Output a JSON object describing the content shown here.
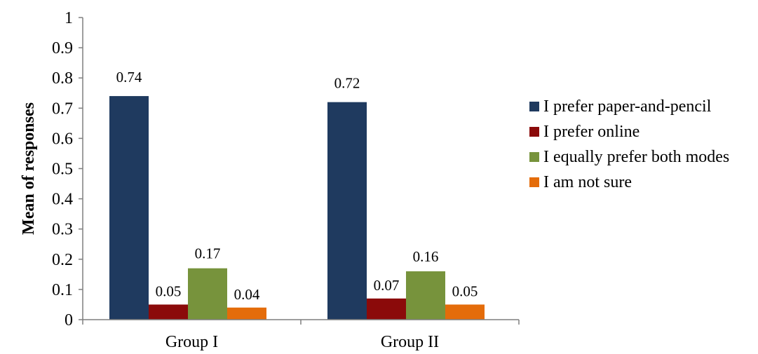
{
  "chart_data": {
    "type": "bar",
    "title": "",
    "xlabel": "",
    "ylabel": "Mean of responses",
    "ylim": [
      0,
      1
    ],
    "y_ticks": [
      "0",
      "0.1",
      "0.2",
      "0.3",
      "0.4",
      "0.5",
      "0.6",
      "0.7",
      "0.8",
      "0.9",
      "1"
    ],
    "categories": [
      "Group I",
      "Group II"
    ],
    "series": [
      {
        "name": "I prefer paper-and-pencil",
        "color": "#1f3a5f",
        "values": [
          0.74,
          0.72
        ],
        "labels": [
          "0.74",
          "0.72"
        ]
      },
      {
        "name": "I prefer online",
        "color": "#8b0a0a",
        "values": [
          0.05,
          0.07
        ],
        "labels": [
          "0.05",
          "0.07"
        ]
      },
      {
        "name": "I equally prefer both modes",
        "color": "#77933c",
        "values": [
          0.17,
          0.16
        ],
        "labels": [
          "0.17",
          "0.16"
        ]
      },
      {
        "name": "I am not sure",
        "color": "#e46c0a",
        "values": [
          0.04,
          0.05
        ],
        "labels": [
          "0.04",
          "0.05"
        ]
      }
    ],
    "grid": false,
    "legend_position": "right"
  }
}
